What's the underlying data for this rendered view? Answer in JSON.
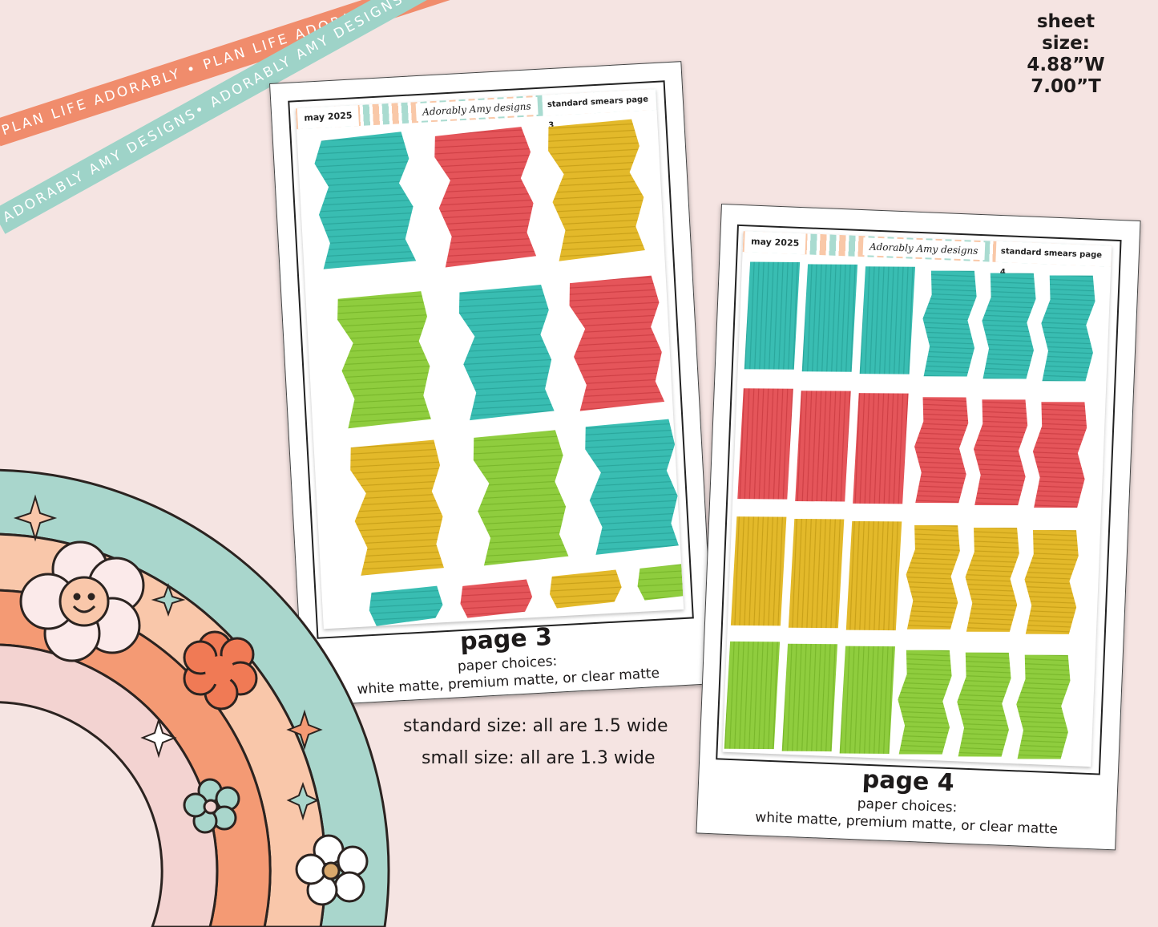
{
  "ribbons": {
    "orange_text": "PLAN LIFE ADORABLY • PLAN LIFE ADORABLY • PLAN LIFE ADORABLY",
    "mint_text": "ADORABLY AMY DESIGNS• ADORABLY AMY DESIGNS• ADORABLY AMY DESIGNS",
    "orange_color": "#f08c6c",
    "mint_color": "#9ed3c8"
  },
  "sheet_size": {
    "label": "sheet size:",
    "width": "4.88”W",
    "height": "7.00”T"
  },
  "brand": {
    "logo_text": "Adorably Amy designs"
  },
  "page3": {
    "month": "may 2025",
    "title": "standard smears page 3",
    "page_label": "page 3",
    "paper_label": "paper choices:",
    "paper_options": "white matte, premium matte, or clear matte"
  },
  "page4": {
    "month": "may 2025",
    "title": "standard smears page 4",
    "page_label": "page 4",
    "paper_label": "paper choices:",
    "paper_options": "white matte, premium matte, or clear matte"
  },
  "sizes": {
    "standard": "standard size: all are 1.5 wide",
    "small": "small size: all are 1.3 wide"
  },
  "colors": {
    "teal": "#39bdb2",
    "red": "#e5555a",
    "yellow": "#e3b92a",
    "green": "#8fcd3e",
    "background": "#f5e4e2"
  }
}
